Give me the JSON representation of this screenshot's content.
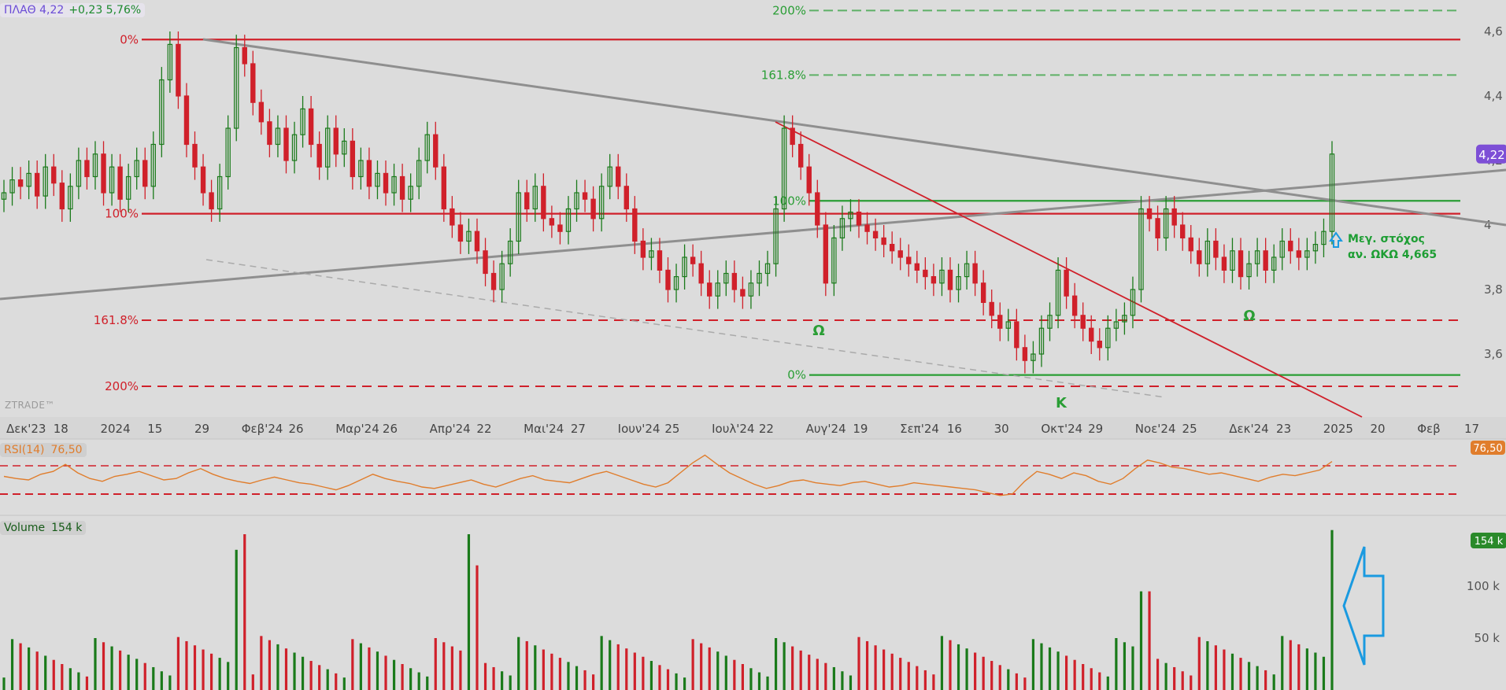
{
  "header": {
    "ticker": "ΠΛΑΘ 4,22",
    "change": "+0,23 5,76%"
  },
  "logo": "ZTRADE™",
  "annotation": {
    "line1": "Μεγ. στόχος",
    "line2": "αν. ΩΚΩ 4,665"
  },
  "colors": {
    "background": "#dcdcdc",
    "up": "#1a7a1a",
    "down": "#d0202a",
    "fib_red": "#d0202a",
    "fib_green": "#2a9e35",
    "trend_gray": "#8f8f8f",
    "rsi": "#e07d2c",
    "price_badge": "#7d4fd6",
    "arrow": "#1a9ae0"
  },
  "chart_data": [
    {
      "type": "candlestick",
      "panel": "price",
      "y_ticks": [
        "4,6",
        "4,4",
        "4,2",
        "4",
        "3,8",
        "3,6"
      ],
      "ylim": [
        3.5,
        4.65
      ],
      "last_price_badge": "4,22",
      "x_tick_labels": [
        "Δεκ'23",
        "18",
        "2024",
        "15",
        "29",
        "Φεβ'24",
        "26",
        "Μαρ'24",
        "26",
        "Απρ'24",
        "22",
        "Μαι'24",
        "27",
        "Ιουν'24",
        "25",
        "Ιουλ'24",
        "22",
        "Αυγ'24",
        "19",
        "Σεπ'24",
        "16",
        "30",
        "Οκτ'24",
        "29",
        "Νοε'24",
        "25",
        "Δεκ'24",
        "23",
        "2025",
        "20",
        "Φεβ",
        "17"
      ],
      "candles_close": [
        4.1,
        4.14,
        4.12,
        4.16,
        4.09,
        4.18,
        4.13,
        4.05,
        4.12,
        4.2,
        4.15,
        4.22,
        4.1,
        4.18,
        4.08,
        4.15,
        4.2,
        4.12,
        4.25,
        4.45,
        4.56,
        4.4,
        4.25,
        4.18,
        4.1,
        4.05,
        4.15,
        4.3,
        4.55,
        4.5,
        4.38,
        4.32,
        4.25,
        4.3,
        4.2,
        4.28,
        4.36,
        4.25,
        4.18,
        4.3,
        4.22,
        4.26,
        4.15,
        4.2,
        4.12,
        4.16,
        4.1,
        4.15,
        4.08,
        4.12,
        4.2,
        4.28,
        4.18,
        4.05,
        4.0,
        3.95,
        3.98,
        3.92,
        3.85,
        3.8,
        3.88,
        3.95,
        4.1,
        4.05,
        4.12,
        4.02,
        4.0,
        3.98,
        4.05,
        4.1,
        4.08,
        4.02,
        4.12,
        4.18,
        4.12,
        4.05,
        3.95,
        3.9,
        3.92,
        3.86,
        3.8,
        3.84,
        3.9,
        3.88,
        3.82,
        3.78,
        3.82,
        3.85,
        3.8,
        3.78,
        3.82,
        3.85,
        3.88,
        4.05,
        4.3,
        4.25,
        4.18,
        4.1,
        4.0,
        3.82,
        3.96,
        4.02,
        4.04,
        4.0,
        3.98,
        3.96,
        3.94,
        3.92,
        3.9,
        3.88,
        3.86,
        3.84,
        3.82,
        3.86,
        3.8,
        3.84,
        3.88,
        3.82,
        3.76,
        3.72,
        3.68,
        3.7,
        3.62,
        3.58,
        3.6,
        3.68,
        3.72,
        3.86,
        3.78,
        3.72,
        3.68,
        3.64,
        3.62,
        3.68,
        3.7,
        3.72,
        3.8,
        4.05,
        4.02,
        3.96,
        4.05,
        4.0,
        3.96,
        3.92,
        3.88,
        3.95,
        3.9,
        3.86,
        3.92,
        3.84,
        3.88,
        3.92,
        3.86,
        3.9,
        3.95,
        3.92,
        3.9,
        3.92,
        3.94,
        3.98,
        4.22
      ],
      "levels": [
        {
          "label": "0%",
          "value": 4.575,
          "style": "solid",
          "color": "red"
        },
        {
          "label": "100%",
          "value": 4.035,
          "style": "solid",
          "color": "red"
        },
        {
          "label": "161.8%",
          "value": 3.705,
          "style": "dashed",
          "color": "red"
        },
        {
          "label": "200%",
          "value": 3.5,
          "style": "dashed",
          "color": "red"
        },
        {
          "label": "200%",
          "value": 4.665,
          "style": "dashed",
          "color": "green"
        },
        {
          "label": "161.8%",
          "value": 4.465,
          "style": "dashed",
          "color": "green"
        },
        {
          "label": "100%",
          "value": 4.075,
          "style": "solid",
          "color": "green"
        },
        {
          "label": "0%",
          "value": 3.535,
          "style": "solid",
          "color": "green"
        }
      ],
      "pattern_labels": [
        "Ω",
        "Κ",
        "Ω"
      ]
    },
    {
      "type": "line",
      "panel": "rsi",
      "name": "RSI(14)",
      "value_label": "76,50",
      "upper_band": 70,
      "lower_band": 30,
      "values": [
        55,
        52,
        50,
        58,
        62,
        72,
        60,
        52,
        48,
        55,
        58,
        62,
        56,
        50,
        52,
        60,
        66,
        58,
        52,
        48,
        45,
        50,
        54,
        50,
        46,
        44,
        40,
        36,
        42,
        50,
        58,
        52,
        48,
        45,
        40,
        38,
        42,
        46,
        50,
        44,
        40,
        46,
        52,
        56,
        50,
        48,
        46,
        52,
        58,
        62,
        56,
        50,
        44,
        40,
        46,
        60,
        74,
        85,
        72,
        60,
        52,
        44,
        38,
        42,
        48,
        50,
        46,
        44,
        42,
        46,
        48,
        44,
        40,
        42,
        46,
        44,
        42,
        40,
        38,
        36,
        32,
        28,
        30,
        48,
        62,
        58,
        52,
        60,
        56,
        48,
        44,
        52,
        66,
        78,
        74,
        68,
        66,
        62,
        58,
        60,
        56,
        52,
        48,
        54,
        58,
        56,
        60,
        64,
        76
      ]
    },
    {
      "type": "bar",
      "panel": "volume",
      "name": "Volume",
      "value_label": "154 k",
      "y_ticks": [
        "100 k",
        "50 k"
      ],
      "ylim": [
        0,
        170
      ]
    }
  ]
}
